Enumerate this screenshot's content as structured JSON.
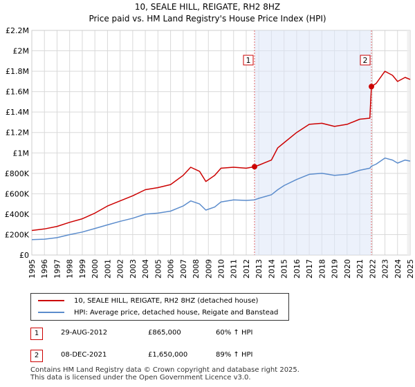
{
  "chart_data": {
    "type": "line",
    "title": "10, SEALE HILL, REIGATE, RH2 8HZ",
    "subtitle": "Price paid vs. HM Land Registry's House Price Index (HPI)",
    "xlabel": "",
    "ylabel": "",
    "xlim": [
      1995,
      2025
    ],
    "ylim": [
      0,
      2200000
    ],
    "grid": true,
    "x_ticks": [
      1995,
      1996,
      1997,
      1998,
      1999,
      2000,
      2001,
      2002,
      2003,
      2004,
      2005,
      2006,
      2007,
      2008,
      2009,
      2010,
      2011,
      2012,
      2013,
      2014,
      2015,
      2016,
      2017,
      2018,
      2019,
      2020,
      2021,
      2022,
      2023,
      2024,
      2025
    ],
    "x_tick_labels": [
      "1995",
      "1996",
      "1997",
      "1998",
      "1999",
      "2000",
      "2001",
      "2002",
      "2003",
      "2004",
      "2005",
      "2006",
      "2007",
      "2008",
      "2009",
      "2010",
      "2011",
      "2012",
      "2013",
      "2014",
      "2015",
      "2016",
      "2017",
      "2018",
      "2019",
      "2020",
      "2021",
      "2022",
      "2023",
      "2024",
      "2025"
    ],
    "y_ticks": [
      0,
      200000,
      400000,
      600000,
      800000,
      1000000,
      1200000,
      1400000,
      1600000,
      1800000,
      2000000,
      2200000
    ],
    "y_tick_labels": [
      "£0",
      "£200K",
      "£400K",
      "£600K",
      "£800K",
      "£1M",
      "£1.2M",
      "£1.4M",
      "£1.6M",
      "£1.8M",
      "£2M",
      "£2.2M"
    ],
    "series": [
      {
        "name": "10, SEALE HILL, REIGATE, RH2 8HZ (detached house)",
        "color": "#cc0000",
        "x": [
          1995,
          1996,
          1997,
          1998,
          1999,
          2000,
          2001,
          2002,
          2003,
          2004,
          2005,
          2006,
          2007,
          2007.6,
          2008.3,
          2008.8,
          2009.5,
          2010,
          2011,
          2012,
          2012.66,
          2013,
          2014,
          2014.5,
          2015,
          2016,
          2017,
          2018,
          2019,
          2020,
          2021,
          2021.8,
          2021.93,
          2022.3,
          2023,
          2023.6,
          2024,
          2024.6,
          2025
        ],
        "values": [
          240000,
          255000,
          280000,
          320000,
          355000,
          410000,
          480000,
          530000,
          580000,
          640000,
          660000,
          690000,
          780000,
          860000,
          820000,
          720000,
          780000,
          850000,
          860000,
          850000,
          865000,
          880000,
          930000,
          1050000,
          1100000,
          1200000,
          1280000,
          1290000,
          1260000,
          1280000,
          1330000,
          1340000,
          1650000,
          1680000,
          1800000,
          1760000,
          1700000,
          1740000,
          1720000
        ]
      },
      {
        "name": "HPI: Average price, detached house, Reigate and Banstead",
        "color": "#5b8ccc",
        "x": [
          1995,
          1996,
          1997,
          1998,
          1999,
          2000,
          2001,
          2002,
          2003,
          2004,
          2005,
          2006,
          2007,
          2007.6,
          2008.3,
          2008.8,
          2009.5,
          2010,
          2011,
          2012,
          2012.66,
          2013,
          2014,
          2014.5,
          2015,
          2016,
          2017,
          2018,
          2019,
          2020,
          2021,
          2021.8,
          2021.93,
          2022.3,
          2023,
          2023.6,
          2024,
          2024.6,
          2025
        ],
        "values": [
          150000,
          155000,
          170000,
          200000,
          225000,
          260000,
          295000,
          330000,
          360000,
          400000,
          410000,
          430000,
          480000,
          530000,
          500000,
          440000,
          470000,
          520000,
          540000,
          535000,
          540000,
          555000,
          590000,
          640000,
          680000,
          740000,
          790000,
          800000,
          780000,
          790000,
          830000,
          850000,
          870000,
          890000,
          950000,
          930000,
          900000,
          930000,
          920000
        ]
      }
    ],
    "markers": [
      {
        "label": "1",
        "x": 2012.66,
        "value": 865000
      },
      {
        "label": "2",
        "x": 2021.93,
        "value": 1650000
      }
    ]
  },
  "legend": {
    "price_paid_label": "10, SEALE HILL, REIGATE, RH2 8HZ (detached house)",
    "hpi_label": "HPI: Average price, detached house, Reigate and Banstead"
  },
  "events": [
    {
      "label": "1",
      "date": "29-AUG-2012",
      "price": "£865,000",
      "hpi": "60% ↑ HPI"
    },
    {
      "label": "2",
      "date": "08-DEC-2021",
      "price": "£1,650,000",
      "hpi": "89% ↑ HPI"
    }
  ],
  "footer": {
    "line1": "Contains HM Land Registry data © Crown copyright and database right 2025.",
    "line2": "This data is licensed under the Open Government Licence v3.0."
  }
}
